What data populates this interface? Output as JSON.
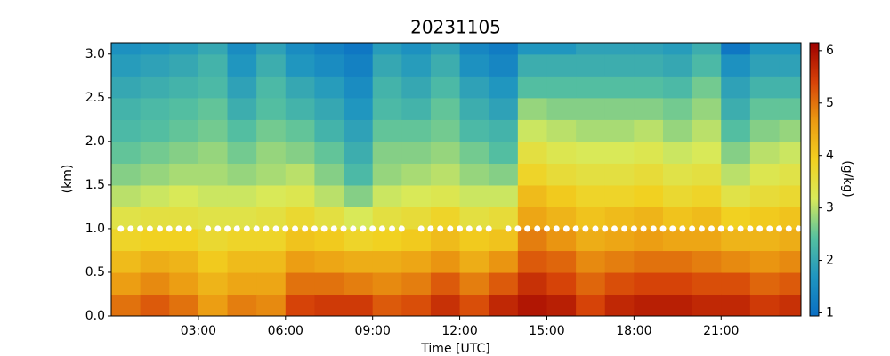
{
  "chart_data": {
    "type": "heatmap",
    "title": "20231105",
    "xlabel": "Time [UTC]",
    "ylabel": "(km)",
    "xlim": [
      0,
      23.75
    ],
    "ylim": [
      0,
      3.13
    ],
    "xticks": [
      {
        "value": 3,
        "label": "03:00"
      },
      {
        "value": 6,
        "label": "06:00"
      },
      {
        "value": 9,
        "label": "09:00"
      },
      {
        "value": 12,
        "label": "12:00"
      },
      {
        "value": 15,
        "label": "15:00"
      },
      {
        "value": 18,
        "label": "18:00"
      },
      {
        "value": 21,
        "label": "21:00"
      }
    ],
    "yticks": [
      {
        "value": 0,
        "label": "0.0"
      },
      0.5,
      {
        "value": 1,
        "label": "1.0"
      },
      1.5,
      {
        "value": 2,
        "label": "2.0"
      },
      2.5,
      {
        "value": 3,
        "label": "3.0"
      }
    ],
    "x": [
      0.5,
      1.5,
      2.5,
      3.5,
      4.5,
      5.5,
      6.5,
      7.5,
      8.5,
      9.5,
      10.5,
      11.5,
      12.5,
      13.5,
      14.5,
      15.5,
      16.5,
      17.5,
      18.5,
      19.5,
      20.5,
      21.5,
      22.5,
      23.5
    ],
    "y": [
      0.125,
      0.375,
      0.625,
      0.875,
      1.125,
      1.375,
      1.625,
      1.875,
      2.125,
      2.375,
      2.625,
      2.875,
      3.125
    ],
    "z": [
      [
        5.0,
        4.6,
        4.2,
        3.8,
        3.4,
        3.0,
        2.7,
        2.5,
        2.3,
        2.2,
        2.0,
        1.8,
        1.6
      ],
      [
        5.2,
        4.8,
        4.4,
        3.9,
        3.5,
        3.1,
        2.8,
        2.6,
        2.4,
        2.3,
        2.1,
        1.9,
        1.7
      ],
      [
        5.0,
        4.6,
        4.3,
        3.9,
        3.5,
        3.2,
        2.9,
        2.7,
        2.5,
        2.4,
        2.2,
        2.0,
        1.8
      ],
      [
        4.6,
        4.3,
        4.0,
        3.7,
        3.4,
        3.1,
        2.9,
        2.8,
        2.6,
        2.5,
        2.3,
        2.2,
        2.0
      ],
      [
        4.9,
        4.5,
        4.2,
        3.8,
        3.4,
        3.1,
        2.8,
        2.6,
        2.4,
        2.1,
        1.9,
        1.7,
        1.5
      ],
      [
        4.8,
        4.5,
        4.2,
        3.8,
        3.5,
        3.2,
        2.9,
        2.8,
        2.6,
        2.4,
        2.3,
        2.1,
        1.9
      ],
      [
        5.4,
        5.0,
        4.6,
        4.1,
        3.7,
        3.3,
        3.0,
        2.7,
        2.5,
        2.2,
        2.0,
        1.7,
        1.5
      ],
      [
        5.5,
        5.0,
        4.5,
        4.0,
        3.5,
        3.0,
        2.7,
        2.5,
        2.2,
        2.0,
        1.8,
        1.5,
        1.3
      ],
      [
        5.5,
        4.9,
        4.4,
        3.8,
        3.2,
        2.7,
        2.3,
        2.1,
        1.9,
        1.7,
        1.5,
        1.3,
        1.1
      ],
      [
        5.2,
        4.8,
        4.4,
        3.9,
        3.5,
        3.1,
        2.8,
        2.7,
        2.5,
        2.3,
        2.2,
        2.0,
        1.8
      ],
      [
        5.3,
        4.9,
        4.5,
        4.0,
        3.6,
        3.2,
        2.9,
        2.7,
        2.5,
        2.2,
        2.0,
        1.8,
        1.6
      ],
      [
        5.6,
        5.2,
        4.7,
        4.2,
        3.8,
        3.3,
        3.0,
        2.8,
        2.6,
        2.5,
        2.3,
        2.1,
        1.9
      ],
      [
        5.3,
        4.9,
        4.4,
        4.0,
        3.5,
        3.1,
        2.8,
        2.6,
        2.3,
        2.1,
        1.9,
        1.6,
        1.4
      ],
      [
        5.7,
        5.2,
        4.7,
        4.1,
        3.6,
        3.1,
        2.7,
        2.4,
        2.2,
        1.9,
        1.7,
        1.4,
        1.2
      ],
      [
        5.9,
        5.6,
        5.2,
        4.9,
        4.5,
        4.2,
        3.8,
        3.5,
        3.1,
        2.8,
        2.4,
        2.1,
        1.7
      ],
      [
        5.8,
        5.4,
        5.1,
        4.7,
        4.3,
        4.0,
        3.6,
        3.3,
        3.0,
        2.7,
        2.4,
        2.1,
        1.7
      ],
      [
        5.4,
        5.1,
        4.8,
        4.4,
        4.1,
        3.8,
        3.5,
        3.2,
        2.9,
        2.7,
        2.4,
        2.1,
        1.9
      ],
      [
        5.7,
        5.3,
        4.9,
        4.5,
        4.2,
        3.8,
        3.5,
        3.2,
        2.9,
        2.7,
        2.4,
        2.1,
        1.9
      ],
      [
        5.8,
        5.4,
        5.0,
        4.6,
        4.3,
        3.9,
        3.6,
        3.3,
        3.0,
        2.7,
        2.4,
        2.1,
        1.9
      ],
      [
        5.8,
        5.4,
        5.0,
        4.5,
        4.1,
        3.7,
        3.4,
        3.1,
        2.8,
        2.6,
        2.3,
        2.0,
        1.8
      ],
      [
        5.7,
        5.3,
        4.9,
        4.5,
        4.2,
        3.8,
        3.5,
        3.2,
        3.0,
        2.8,
        2.6,
        2.3,
        2.1
      ],
      [
        5.7,
        5.3,
        4.8,
        4.3,
        3.9,
        3.4,
        3.0,
        2.7,
        2.4,
        2.1,
        1.9,
        1.6,
        1.1
      ],
      [
        5.5,
        5.1,
        4.7,
        4.3,
        4.0,
        3.6,
        3.3,
        3.0,
        2.7,
        2.5,
        2.2,
        1.9,
        1.7
      ],
      [
        5.6,
        5.2,
        4.8,
        4.4,
        4.1,
        3.7,
        3.4,
        3.1,
        2.8,
        2.5,
        2.2,
        1.9,
        1.7
      ]
    ],
    "colormap": [
      "#0a6fc4",
      "#1f95c0",
      "#55c0a0",
      "#d8ea5a",
      "#f2d020",
      "#eb9a12",
      "#d64208",
      "#9e0000"
    ],
    "points": {
      "color": "#ffffff",
      "x": [
        0.33,
        0.67,
        1.0,
        1.33,
        1.67,
        2.0,
        2.33,
        2.67,
        3.33,
        3.67,
        4.0,
        4.33,
        4.67,
        5.0,
        5.33,
        5.67,
        6.0,
        6.33,
        6.67,
        7.0,
        7.33,
        7.67,
        8.0,
        8.33,
        8.67,
        9.0,
        9.33,
        9.67,
        10.0,
        10.67,
        11.0,
        11.33,
        11.67,
        12.0,
        12.33,
        12.67,
        13.0,
        13.67,
        14.0,
        14.33,
        14.67,
        15.0,
        15.33,
        15.67,
        16.0,
        16.33,
        16.67,
        17.0,
        17.33,
        17.67,
        18.0,
        18.33,
        18.67,
        19.0,
        19.33,
        19.67,
        20.0,
        20.33,
        20.67,
        21.0,
        21.33,
        21.67,
        22.0,
        22.33,
        22.67,
        23.0,
        23.33,
        23.67
      ],
      "y": [
        1,
        1,
        1,
        1,
        1,
        1,
        1,
        1,
        1,
        1,
        1,
        1,
        1,
        1,
        1,
        1,
        1,
        1,
        1,
        1,
        1,
        1,
        1,
        1,
        1,
        1,
        1,
        1,
        1,
        1,
        1,
        1,
        1,
        1,
        1,
        1,
        1,
        1,
        1,
        1,
        1,
        1,
        1,
        1,
        1,
        1,
        1,
        1,
        1,
        1,
        1,
        1,
        1,
        1,
        1,
        1,
        1,
        1,
        1,
        1,
        1,
        1,
        1,
        1,
        1,
        1,
        1,
        1
      ]
    },
    "colorbar": {
      "label": "(g/kg)",
      "lim": [
        0.94,
        6.15
      ],
      "ticks": [
        1,
        2,
        3,
        4,
        5,
        6
      ]
    }
  }
}
